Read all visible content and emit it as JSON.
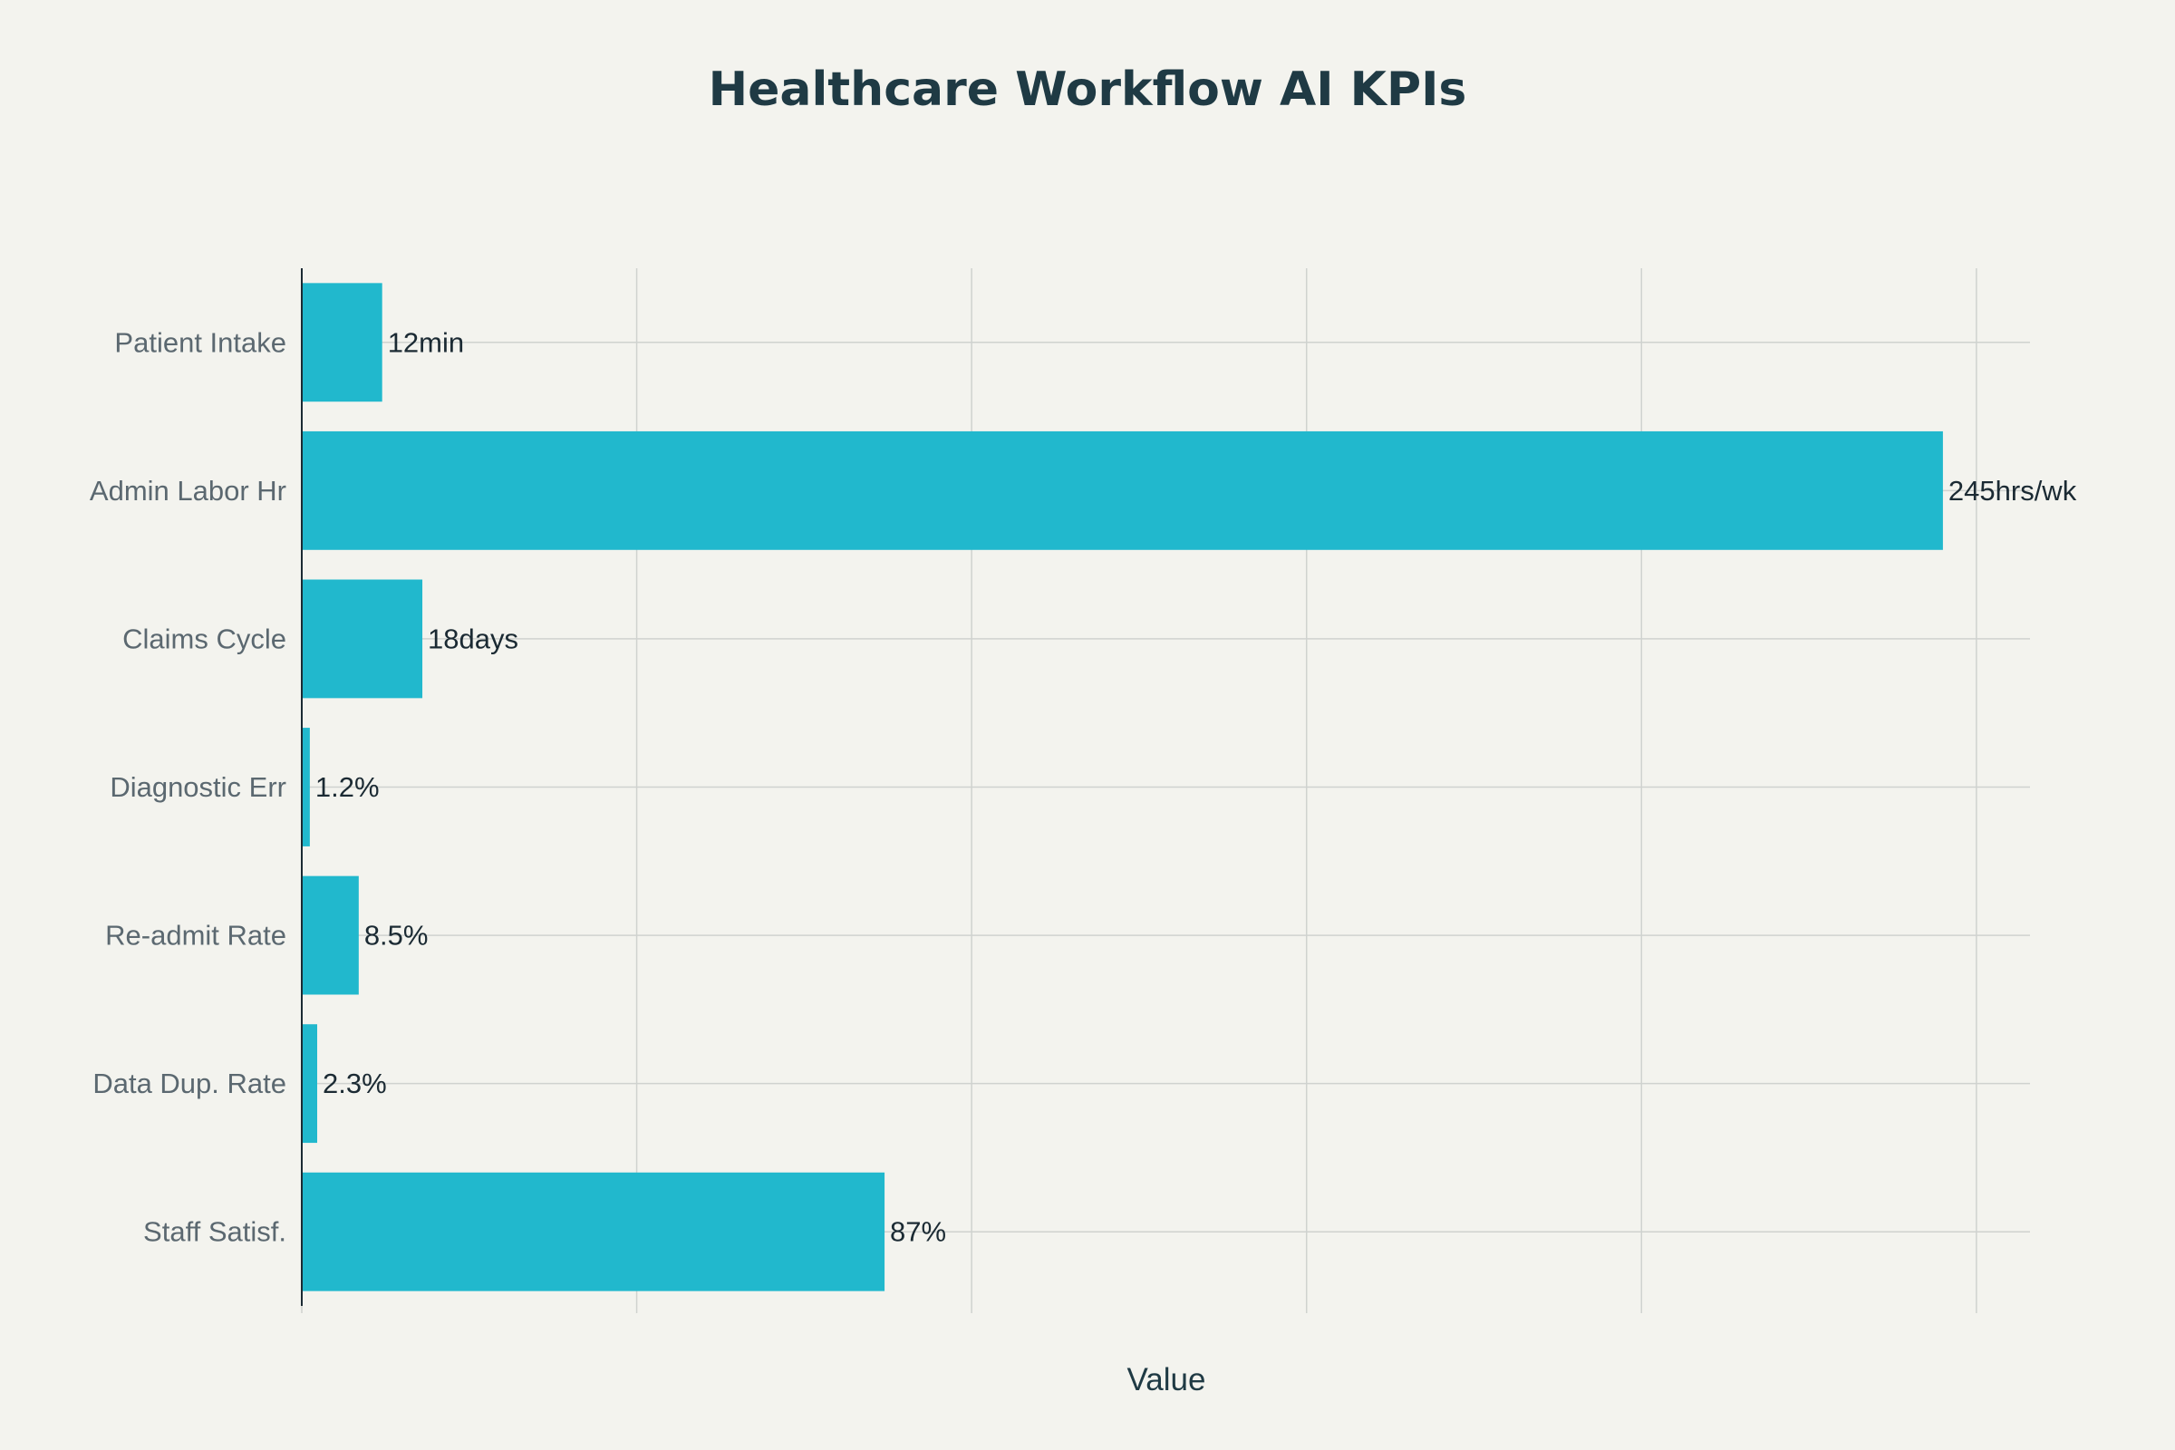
{
  "chart_data": {
    "type": "bar",
    "orientation": "horizontal",
    "title": "Healthcare Workflow AI KPIs",
    "xlabel": "Value",
    "ylabel": "",
    "categories": [
      "Patient Intake",
      "Admin Labor Hr",
      "Claims Cycle",
      "Diagnostic Err",
      "Re-admit Rate",
      "Data Dup. Rate",
      "Staff Satisf."
    ],
    "values": [
      12,
      245,
      18,
      1.2,
      8.5,
      2.3,
      87
    ],
    "data_labels": [
      "12min",
      "245hrs/wk",
      "18days",
      "1.2%",
      "8.5%",
      "2.3%",
      "87%"
    ],
    "xlim": [
      0,
      258
    ],
    "grid": true,
    "bar_color": "#21b8cd",
    "background_color": "#f3f3ee"
  }
}
